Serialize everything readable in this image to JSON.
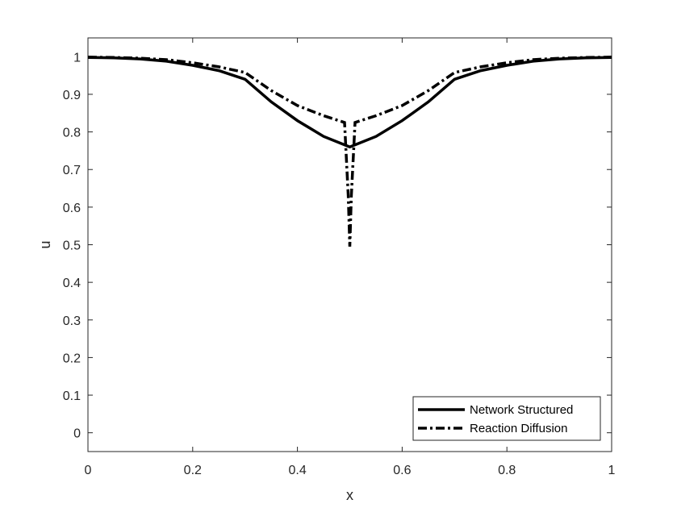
{
  "chart_data": {
    "type": "line",
    "title": "",
    "xlabel": "x",
    "ylabel": "u",
    "xlim": [
      0,
      1
    ],
    "ylim": [
      -0.05,
      1.05
    ],
    "xticks": [
      0,
      0.2,
      0.4,
      0.6,
      0.8,
      1
    ],
    "xtick_labels": [
      "0",
      "0.2",
      "0.4",
      "0.6",
      "0.8",
      "1"
    ],
    "yticks": [
      0,
      0.1,
      0.2,
      0.3,
      0.4,
      0.5,
      0.6,
      0.7,
      0.8,
      0.9,
      1
    ],
    "ytick_labels": [
      "0",
      "0.1",
      "0.2",
      "0.3",
      "0.4",
      "0.5",
      "0.6",
      "0.7",
      "0.8",
      "0.9",
      "1"
    ],
    "grid": false,
    "legend_position": "bottom-right",
    "series": [
      {
        "name": "Network Structured",
        "style": "solid",
        "color": "#000000",
        "x": [
          0,
          0.05,
          0.1,
          0.15,
          0.2,
          0.25,
          0.3,
          0.35,
          0.4,
          0.45,
          0.5,
          0.55,
          0.6,
          0.65,
          0.7,
          0.75,
          0.8,
          0.85,
          0.9,
          0.95,
          1
        ],
        "y": [
          0.998,
          0.997,
          0.994,
          0.988,
          0.977,
          0.963,
          0.94,
          0.88,
          0.83,
          0.788,
          0.76,
          0.788,
          0.83,
          0.88,
          0.94,
          0.963,
          0.977,
          0.988,
          0.994,
          0.997,
          0.998
        ]
      },
      {
        "name": "Reaction Diffusion",
        "style": "dashdot",
        "color": "#000000",
        "x": [
          0,
          0.05,
          0.1,
          0.15,
          0.2,
          0.25,
          0.3,
          0.35,
          0.4,
          0.45,
          0.49,
          0.497,
          0.5,
          0.503,
          0.51,
          0.55,
          0.6,
          0.65,
          0.7,
          0.75,
          0.8,
          0.85,
          0.9,
          0.95,
          1
        ],
        "y": [
          0.999,
          0.998,
          0.996,
          0.992,
          0.984,
          0.973,
          0.958,
          0.91,
          0.87,
          0.843,
          0.825,
          0.63,
          0.495,
          0.63,
          0.825,
          0.843,
          0.87,
          0.91,
          0.958,
          0.973,
          0.984,
          0.992,
          0.996,
          0.998,
          0.999
        ]
      }
    ]
  }
}
